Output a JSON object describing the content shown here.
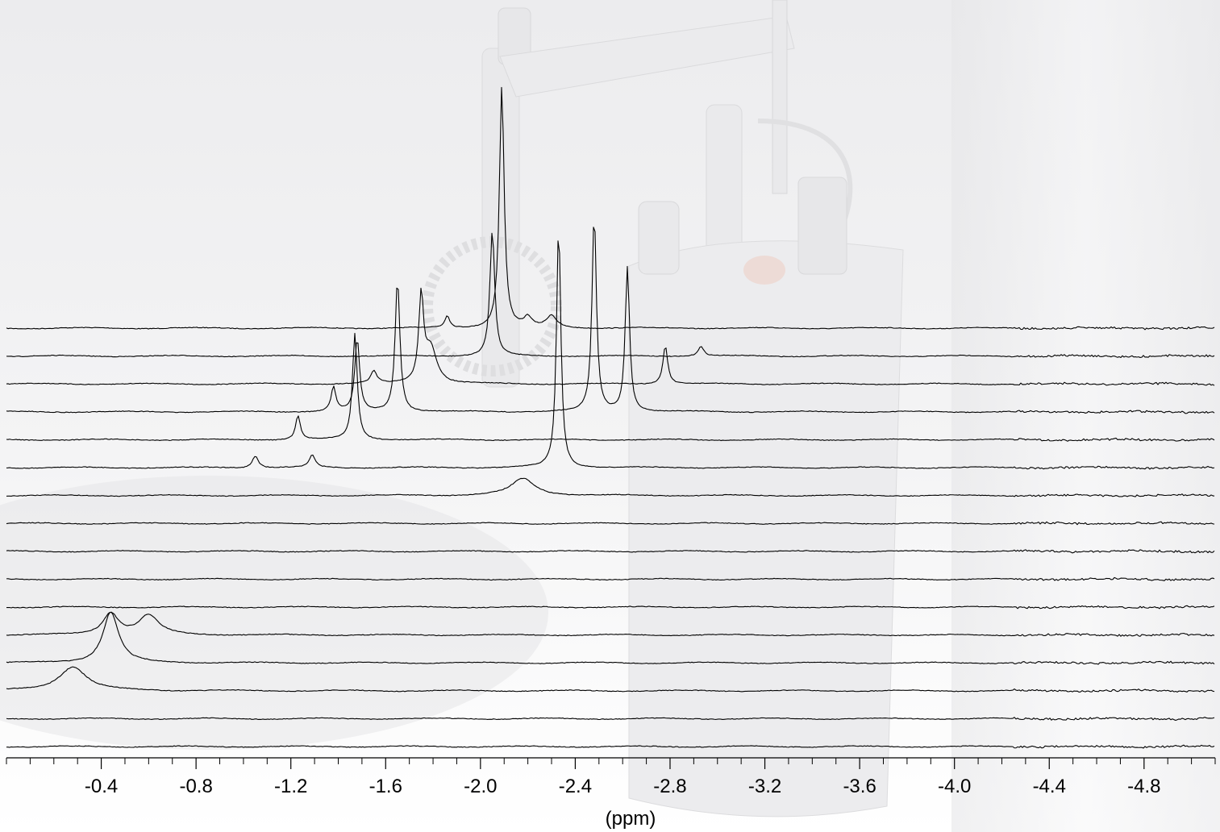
{
  "chart_data": {
    "type": "line",
    "title": "",
    "xlabel": "(ppm)",
    "ylabel": "",
    "xlim": [
      0.0,
      -5.1
    ],
    "x_reversed": true,
    "y_axis": "stacked traces, no y scale",
    "grid": false,
    "legend": "none",
    "xticks": [
      {
        "value": -0.4,
        "label": "-0.4"
      },
      {
        "value": -0.8,
        "label": "-0.8"
      },
      {
        "value": -1.2,
        "label": "-1.2"
      },
      {
        "value": -1.6,
        "label": "-1.6"
      },
      {
        "value": -2.0,
        "label": "-2.0"
      },
      {
        "value": -2.4,
        "label": "-2.4"
      },
      {
        "value": -2.8,
        "label": "-2.8"
      },
      {
        "value": -3.2,
        "label": "-3.2"
      },
      {
        "value": -3.6,
        "label": "-3.6"
      },
      {
        "value": -4.0,
        "label": "-4.0"
      },
      {
        "value": -4.4,
        "label": "-4.4"
      },
      {
        "value": -4.8,
        "label": "-4.8"
      }
    ],
    "traces": [
      {
        "peaks": [
          {
            "x": -1.86,
            "h": 0.05,
            "w": 0.012
          },
          {
            "x": -2.09,
            "h": 1.0,
            "w": 0.012
          },
          {
            "x": -2.2,
            "h": 0.04,
            "w": 0.02
          },
          {
            "x": -2.3,
            "h": 0.05,
            "w": 0.025
          }
        ]
      },
      {
        "peaks": [
          {
            "x": -2.05,
            "h": 0.52,
            "w": 0.012
          },
          {
            "x": -2.93,
            "h": 0.04,
            "w": 0.015
          }
        ]
      },
      {
        "peaks": [
          {
            "x": -1.55,
            "h": 0.05,
            "w": 0.015
          },
          {
            "x": -1.75,
            "h": 0.35,
            "w": 0.012
          },
          {
            "x": -1.79,
            "h": 0.15,
            "w": 0.03
          },
          {
            "x": -2.78,
            "h": 0.16,
            "w": 0.012
          }
        ]
      },
      {
        "peaks": [
          {
            "x": -1.38,
            "h": 0.1,
            "w": 0.012
          },
          {
            "x": -1.48,
            "h": 0.3,
            "w": 0.012
          },
          {
            "x": -1.65,
            "h": 0.55,
            "w": 0.012
          },
          {
            "x": -2.48,
            "h": 0.82,
            "w": 0.011
          },
          {
            "x": -2.62,
            "h": 0.6,
            "w": 0.011
          }
        ]
      },
      {
        "peaks": [
          {
            "x": -1.23,
            "h": 0.1,
            "w": 0.012
          },
          {
            "x": -1.47,
            "h": 0.44,
            "w": 0.012
          }
        ]
      },
      {
        "peaks": [
          {
            "x": -1.05,
            "h": 0.05,
            "w": 0.015
          },
          {
            "x": -1.29,
            "h": 0.05,
            "w": 0.015
          },
          {
            "x": -2.33,
            "h": 1.0,
            "w": 0.011
          }
        ]
      },
      {
        "peaks": [
          {
            "x": -2.18,
            "h": 0.07,
            "w": 0.06
          }
        ]
      },
      {
        "peaks": []
      },
      {
        "peaks": []
      },
      {
        "peaks": []
      },
      {
        "peaks": []
      },
      {
        "peaks": [
          {
            "x": -0.44,
            "h": 0.09,
            "w": 0.04
          },
          {
            "x": -0.6,
            "h": 0.08,
            "w": 0.05
          }
        ]
      },
      {
        "peaks": [
          {
            "x": -0.44,
            "h": 0.21,
            "w": 0.04
          }
        ]
      },
      {
        "peaks": [
          {
            "x": -0.28,
            "h": 0.1,
            "w": 0.07
          }
        ]
      },
      {
        "peaks": []
      },
      {
        "peaks": []
      }
    ]
  }
}
